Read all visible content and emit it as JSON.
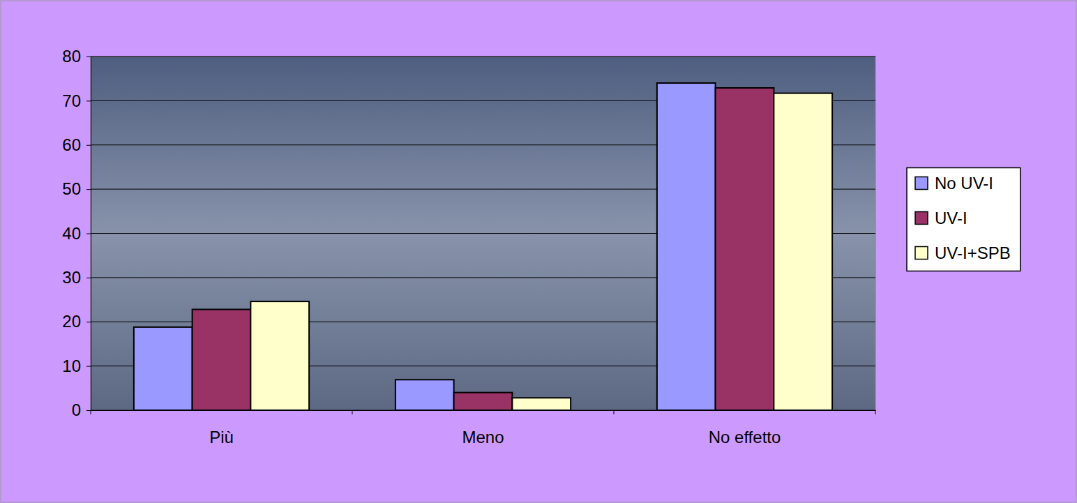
{
  "chart_data": {
    "type": "bar",
    "categories": [
      "Più",
      "Meno",
      "No effetto"
    ],
    "series": [
      {
        "name": "No UV-I",
        "color": "#9999ff",
        "values": [
          18.8,
          6.9,
          74
        ]
      },
      {
        "name": "UV-I",
        "color": "#993366",
        "values": [
          22.8,
          4,
          72.9
        ]
      },
      {
        "name": "UV-I+SPB",
        "color": "#ffffcc",
        "values": [
          24.6,
          2.8,
          71.7
        ]
      }
    ],
    "ylim": [
      0,
      80
    ],
    "yticks": [
      0,
      10,
      20,
      30,
      40,
      50,
      60,
      70,
      80
    ],
    "grid": true,
    "legend": "right"
  }
}
